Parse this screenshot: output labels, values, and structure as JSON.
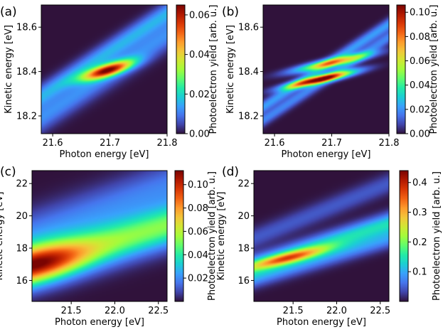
{
  "figure": {
    "colormap": [
      "#30123b",
      "#4145ab",
      "#4675ed",
      "#39a2fc",
      "#1bcfd4",
      "#24eca6",
      "#61fc6c",
      "#a4fc3b",
      "#d1e834",
      "#f3c63a",
      "#fe9b2d",
      "#f36315",
      "#d93806",
      "#b11901",
      "#7a0402"
    ]
  },
  "chart_data": [
    {
      "panel": "(a)",
      "type": "heatmap",
      "xlabel": "Photon energy [eV]",
      "ylabel": "Kinetic energy [eV]",
      "colorbar_label": "Photoelectron yield [arb. u.]",
      "xlim": [
        21.58,
        21.8
      ],
      "ylim": [
        18.12,
        18.7
      ],
      "xticks": [
        21.6,
        21.7,
        21.8
      ],
      "xticklabels": [
        "21.6",
        "21.7",
        "21.8"
      ],
      "yticks": [
        18.2,
        18.4,
        18.6
      ],
      "yticklabels": [
        "18.2",
        "18.4",
        "18.6"
      ],
      "clim": [
        0,
        0.065
      ],
      "cticks": [
        0,
        0.02,
        0.04,
        0.06
      ],
      "cticklabels": [
        "0.00",
        "0.02",
        "0.04",
        "0.06"
      ],
      "features": [
        {
          "kind": "band",
          "x0": 21.58,
          "y0": 18.29,
          "slope": 1.7,
          "width": 0.035,
          "amp": 0.015
        },
        {
          "kind": "band",
          "x0": 21.58,
          "y0": 18.19,
          "slope": 1.7,
          "width": 0.045,
          "amp": 0.012
        },
        {
          "kind": "blob",
          "cx": 21.695,
          "cy": 18.405,
          "sx": 0.03,
          "sy": 0.03,
          "rho": 0.75,
          "amp": 0.055
        }
      ]
    },
    {
      "panel": "(b)",
      "type": "heatmap",
      "xlabel": "Photon energy [eV]",
      "ylabel": "Kinetic energy [eV]",
      "colorbar_label": "Photoelectron yield [arb. u.]",
      "xlim": [
        21.58,
        21.8
      ],
      "ylim": [
        18.12,
        18.7
      ],
      "xticks": [
        21.6,
        21.7,
        21.8
      ],
      "xticklabels": [
        "21.6",
        "21.7",
        "21.8"
      ],
      "yticks": [
        18.2,
        18.4,
        18.6
      ],
      "yticklabels": [
        "18.2",
        "18.4",
        "18.6"
      ],
      "clim": [
        0,
        0.106
      ],
      "cticks": [
        0,
        0.02,
        0.04,
        0.06,
        0.08,
        0.1
      ],
      "cticklabels": [
        "0.00",
        "0.02",
        "0.04",
        "0.06",
        "0.08",
        "0.10"
      ],
      "features": [
        {
          "kind": "band",
          "x0": 21.58,
          "y0": 18.24,
          "slope": 1.7,
          "width": 0.02,
          "amp": 0.022
        },
        {
          "kind": "band",
          "x0": 21.58,
          "y0": 18.18,
          "slope": 1.7,
          "width": 0.02,
          "amp": 0.018
        },
        {
          "kind": "blob",
          "cx": 21.7,
          "cy": 18.44,
          "sx": 0.045,
          "sy": 0.028,
          "rho": 0.88,
          "amp": 0.065
        },
        {
          "kind": "blob",
          "cx": 21.68,
          "cy": 18.365,
          "sx": 0.04,
          "sy": 0.026,
          "rho": 0.88,
          "amp": 0.1
        }
      ]
    },
    {
      "panel": "(c)",
      "type": "heatmap",
      "xlabel": "Photon energy [eV]",
      "ylabel": "Kinetic energy [eV]",
      "colorbar_label": "Photoelectron yield [arb. u.]",
      "xlim": [
        21.05,
        22.6
      ],
      "ylim": [
        14.7,
        22.8
      ],
      "xticks": [
        21.5,
        22.0,
        22.5
      ],
      "xticklabels": [
        "21.5",
        "22.0",
        "22.5"
      ],
      "yticks": [
        16,
        18,
        20,
        22
      ],
      "yticklabels": [
        "16",
        "18",
        "20",
        "22"
      ],
      "clim": [
        0,
        0.112
      ],
      "cticks": [
        0.02,
        0.04,
        0.06,
        0.08,
        0.1
      ],
      "cticklabels": [
        "0.02",
        "0.04",
        "0.06",
        "0.08",
        "0.10"
      ],
      "features": [
        {
          "kind": "band",
          "x0": 21.05,
          "y0": 16.9,
          "slope": 1.6,
          "width": 0.9,
          "amp": 0.052
        },
        {
          "kind": "band",
          "x0": 21.05,
          "y0": 18.9,
          "slope": 1.9,
          "width": 1.0,
          "amp": 0.018
        },
        {
          "kind": "blob",
          "cx": 21.1,
          "cy": 17.0,
          "sx": 0.4,
          "sy": 0.9,
          "rho": 0.5,
          "amp": 0.06
        }
      ]
    },
    {
      "panel": "(d)",
      "type": "heatmap",
      "xlabel": "Photon energy [eV]",
      "ylabel": "Kinetic energy [eV]",
      "colorbar_label": "Photoelectron yield [arb. u.]",
      "xlim": [
        21.05,
        22.6
      ],
      "ylim": [
        14.7,
        22.8
      ],
      "xticks": [
        21.5,
        22.0,
        22.5
      ],
      "xticklabels": [
        "21.5",
        "22.0",
        "22.5"
      ],
      "yticks": [
        16,
        18,
        20,
        22
      ],
      "yticklabels": [
        "16",
        "18",
        "20",
        "22"
      ],
      "clim": [
        0,
        0.44
      ],
      "cticks": [
        0.1,
        0.2,
        0.3,
        0.4
      ],
      "cticklabels": [
        "0.1",
        "0.2",
        "0.3",
        "0.4"
      ],
      "features": [
        {
          "kind": "band",
          "x0": 21.05,
          "y0": 16.9,
          "slope": 1.7,
          "width": 0.45,
          "amp": 0.14
        },
        {
          "kind": "band",
          "x0": 21.05,
          "y0": 16.1,
          "slope": 1.6,
          "width": 0.4,
          "amp": 0.08
        },
        {
          "kind": "band",
          "x0": 21.05,
          "y0": 18.6,
          "slope": 2.2,
          "width": 0.45,
          "amp": 0.045
        },
        {
          "kind": "blob",
          "cx": 21.45,
          "cy": 17.4,
          "sx": 0.3,
          "sy": 0.45,
          "rho": 0.85,
          "amp": 0.23
        }
      ]
    }
  ]
}
